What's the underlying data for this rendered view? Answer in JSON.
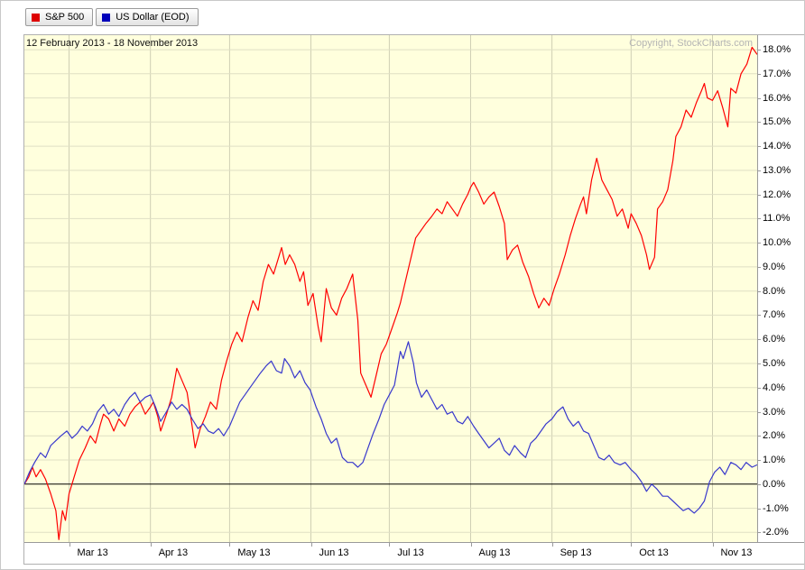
{
  "legend": {
    "items": [
      {
        "label": "S&P 500",
        "color": "#dd0000"
      },
      {
        "label": "US Dollar (EOD)",
        "color": "#0000bb"
      }
    ]
  },
  "chart_data": {
    "type": "line",
    "date_range": "12 February 2013 - 18 November 2013",
    "copyright": "Copyright, StockCharts.com",
    "y_axis": {
      "unit": "%",
      "tick_min": -2,
      "tick_max": 18,
      "tick_step": 1,
      "range": [
        -2.4,
        18.6
      ],
      "grid": true,
      "side": "right"
    },
    "x_axis": {
      "months": [
        {
          "label": "Mar 13",
          "pos": 0.061
        },
        {
          "label": "Apr 13",
          "pos": 0.172
        },
        {
          "label": "May 13",
          "pos": 0.28
        },
        {
          "label": "Jun 13",
          "pos": 0.391
        },
        {
          "label": "Jul 13",
          "pos": 0.498
        },
        {
          "label": "Aug 13",
          "pos": 0.609
        },
        {
          "label": "Sep 13",
          "pos": 0.72
        },
        {
          "label": "Oct 13",
          "pos": 0.828
        },
        {
          "label": "Nov 13",
          "pos": 0.939
        }
      ]
    },
    "colors": {
      "background": "#ffffdd",
      "h_grid": "#dfdfc4",
      "v_grid": "#cfcfb4",
      "zero_line": "#000000",
      "axis": "#9a9a9a"
    },
    "series": [
      {
        "id": "sp500",
        "name": "S&P 500",
        "color": "#ff0000",
        "unit": "% change",
        "points": [
          [
            0,
            0
          ],
          [
            0.006,
            0.3
          ],
          [
            0.011,
            0.7
          ],
          [
            0.016,
            0.3
          ],
          [
            0.022,
            0.6
          ],
          [
            0.029,
            0.2
          ],
          [
            0.036,
            -0.4
          ],
          [
            0.043,
            -1.1
          ],
          [
            0.047,
            -2.3
          ],
          [
            0.052,
            -1.1
          ],
          [
            0.056,
            -1.5
          ],
          [
            0.061,
            -0.4
          ],
          [
            0.068,
            0.3
          ],
          [
            0.075,
            1
          ],
          [
            0.083,
            1.5
          ],
          [
            0.09,
            2
          ],
          [
            0.097,
            1.7
          ],
          [
            0.104,
            2.5
          ],
          [
            0.108,
            2.9
          ],
          [
            0.115,
            2.7
          ],
          [
            0.122,
            2.2
          ],
          [
            0.129,
            2.7
          ],
          [
            0.137,
            2.4
          ],
          [
            0.144,
            2.9
          ],
          [
            0.151,
            3.2
          ],
          [
            0.158,
            3.4
          ],
          [
            0.165,
            2.9
          ],
          [
            0.172,
            3.2
          ],
          [
            0.176,
            3.4
          ],
          [
            0.182,
            2.8
          ],
          [
            0.186,
            2.2
          ],
          [
            0.194,
            2.9
          ],
          [
            0.201,
            3.6
          ],
          [
            0.208,
            4.8
          ],
          [
            0.215,
            4.3
          ],
          [
            0.222,
            3.8
          ],
          [
            0.229,
            2.4
          ],
          [
            0.233,
            1.5
          ],
          [
            0.24,
            2.3
          ],
          [
            0.247,
            2.8
          ],
          [
            0.254,
            3.4
          ],
          [
            0.262,
            3.1
          ],
          [
            0.269,
            4.3
          ],
          [
            0.276,
            5.1
          ],
          [
            0.283,
            5.8
          ],
          [
            0.29,
            6.3
          ],
          [
            0.297,
            5.9
          ],
          [
            0.305,
            6.9
          ],
          [
            0.312,
            7.6
          ],
          [
            0.319,
            7.2
          ],
          [
            0.326,
            8.4
          ],
          [
            0.333,
            9.1
          ],
          [
            0.34,
            8.7
          ],
          [
            0.347,
            9.4
          ],
          [
            0.351,
            9.8
          ],
          [
            0.356,
            9.1
          ],
          [
            0.362,
            9.5
          ],
          [
            0.369,
            9.1
          ],
          [
            0.376,
            8.4
          ],
          [
            0.381,
            8.8
          ],
          [
            0.387,
            7.4
          ],
          [
            0.394,
            7.9
          ],
          [
            0.401,
            6.5
          ],
          [
            0.405,
            5.9
          ],
          [
            0.412,
            8.1
          ],
          [
            0.419,
            7.3
          ],
          [
            0.426,
            7
          ],
          [
            0.433,
            7.7
          ],
          [
            0.44,
            8.1
          ],
          [
            0.448,
            8.7
          ],
          [
            0.455,
            6.8
          ],
          [
            0.459,
            4.6
          ],
          [
            0.466,
            4.1
          ],
          [
            0.473,
            3.6
          ],
          [
            0.48,
            4.5
          ],
          [
            0.487,
            5.4
          ],
          [
            0.494,
            5.8
          ],
          [
            0.501,
            6.4
          ],
          [
            0.509,
            7.1
          ],
          [
            0.513,
            7.5
          ],
          [
            0.52,
            8.4
          ],
          [
            0.527,
            9.3
          ],
          [
            0.534,
            10.2
          ],
          [
            0.541,
            10.5
          ],
          [
            0.548,
            10.8
          ],
          [
            0.556,
            11.1
          ],
          [
            0.563,
            11.4
          ],
          [
            0.57,
            11.2
          ],
          [
            0.577,
            11.7
          ],
          [
            0.584,
            11.4
          ],
          [
            0.591,
            11.1
          ],
          [
            0.598,
            11.6
          ],
          [
            0.605,
            12
          ],
          [
            0.609,
            12.3
          ],
          [
            0.613,
            12.5
          ],
          [
            0.62,
            12.1
          ],
          [
            0.627,
            11.6
          ],
          [
            0.634,
            11.9
          ],
          [
            0.641,
            12.1
          ],
          [
            0.648,
            11.5
          ],
          [
            0.655,
            10.8
          ],
          [
            0.659,
            9.3
          ],
          [
            0.666,
            9.7
          ],
          [
            0.673,
            9.9
          ],
          [
            0.68,
            9.2
          ],
          [
            0.688,
            8.6
          ],
          [
            0.695,
            7.9
          ],
          [
            0.702,
            7.3
          ],
          [
            0.709,
            7.7
          ],
          [
            0.716,
            7.4
          ],
          [
            0.723,
            8.1
          ],
          [
            0.73,
            8.7
          ],
          [
            0.738,
            9.5
          ],
          [
            0.745,
            10.3
          ],
          [
            0.752,
            11
          ],
          [
            0.759,
            11.6
          ],
          [
            0.763,
            11.9
          ],
          [
            0.767,
            11.2
          ],
          [
            0.774,
            12.6
          ],
          [
            0.781,
            13.5
          ],
          [
            0.788,
            12.6
          ],
          [
            0.795,
            12.2
          ],
          [
            0.802,
            11.8
          ],
          [
            0.809,
            11.1
          ],
          [
            0.816,
            11.4
          ],
          [
            0.824,
            10.6
          ],
          [
            0.828,
            11.2
          ],
          [
            0.835,
            10.8
          ],
          [
            0.842,
            10.3
          ],
          [
            0.849,
            9.5
          ],
          [
            0.853,
            8.9
          ],
          [
            0.86,
            9.4
          ],
          [
            0.864,
            11.4
          ],
          [
            0.871,
            11.7
          ],
          [
            0.878,
            12.2
          ],
          [
            0.885,
            13.4
          ],
          [
            0.889,
            14.4
          ],
          [
            0.896,
            14.8
          ],
          [
            0.903,
            15.5
          ],
          [
            0.91,
            15.2
          ],
          [
            0.917,
            15.8
          ],
          [
            0.924,
            16.3
          ],
          [
            0.928,
            16.6
          ],
          [
            0.932,
            16
          ],
          [
            0.939,
            15.9
          ],
          [
            0.946,
            16.3
          ],
          [
            0.953,
            15.6
          ],
          [
            0.96,
            14.8
          ],
          [
            0.964,
            16.4
          ],
          [
            0.971,
            16.2
          ],
          [
            0.978,
            17
          ],
          [
            0.986,
            17.4
          ],
          [
            0.993,
            18.1
          ],
          [
            1,
            17.8
          ]
        ]
      },
      {
        "id": "usd",
        "name": "US Dollar (EOD)",
        "color": "#3838cc",
        "unit": "% change",
        "points": [
          [
            0,
            0
          ],
          [
            0.007,
            0.5
          ],
          [
            0.014,
            0.9
          ],
          [
            0.022,
            1.3
          ],
          [
            0.029,
            1.1
          ],
          [
            0.036,
            1.6
          ],
          [
            0.043,
            1.8
          ],
          [
            0.05,
            2
          ],
          [
            0.058,
            2.2
          ],
          [
            0.065,
            1.9
          ],
          [
            0.072,
            2.1
          ],
          [
            0.079,
            2.4
          ],
          [
            0.086,
            2.2
          ],
          [
            0.093,
            2.5
          ],
          [
            0.1,
            3
          ],
          [
            0.108,
            3.3
          ],
          [
            0.115,
            2.9
          ],
          [
            0.122,
            3.1
          ],
          [
            0.129,
            2.8
          ],
          [
            0.137,
            3.3
          ],
          [
            0.144,
            3.6
          ],
          [
            0.151,
            3.8
          ],
          [
            0.158,
            3.4
          ],
          [
            0.165,
            3.6
          ],
          [
            0.172,
            3.7
          ],
          [
            0.179,
            3.2
          ],
          [
            0.186,
            2.6
          ],
          [
            0.194,
            3
          ],
          [
            0.201,
            3.4
          ],
          [
            0.208,
            3.1
          ],
          [
            0.215,
            3.3
          ],
          [
            0.222,
            3.1
          ],
          [
            0.229,
            2.7
          ],
          [
            0.237,
            2.3
          ],
          [
            0.244,
            2.5
          ],
          [
            0.251,
            2.2
          ],
          [
            0.258,
            2.1
          ],
          [
            0.265,
            2.3
          ],
          [
            0.272,
            2
          ],
          [
            0.28,
            2.4
          ],
          [
            0.287,
            2.9
          ],
          [
            0.294,
            3.4
          ],
          [
            0.301,
            3.7
          ],
          [
            0.308,
            4
          ],
          [
            0.315,
            4.3
          ],
          [
            0.322,
            4.6
          ],
          [
            0.33,
            4.9
          ],
          [
            0.337,
            5.1
          ],
          [
            0.344,
            4.7
          ],
          [
            0.351,
            4.6
          ],
          [
            0.355,
            5.2
          ],
          [
            0.362,
            4.9
          ],
          [
            0.369,
            4.4
          ],
          [
            0.376,
            4.7
          ],
          [
            0.383,
            4.2
          ],
          [
            0.39,
            3.9
          ],
          [
            0.398,
            3.2
          ],
          [
            0.405,
            2.7
          ],
          [
            0.412,
            2.1
          ],
          [
            0.419,
            1.7
          ],
          [
            0.426,
            1.9
          ],
          [
            0.434,
            1.1
          ],
          [
            0.441,
            0.9
          ],
          [
            0.448,
            0.9
          ],
          [
            0.455,
            0.7
          ],
          [
            0.462,
            0.9
          ],
          [
            0.469,
            1.5
          ],
          [
            0.476,
            2.1
          ],
          [
            0.484,
            2.7
          ],
          [
            0.491,
            3.3
          ],
          [
            0.498,
            3.7
          ],
          [
            0.505,
            4.1
          ],
          [
            0.513,
            5.5
          ],
          [
            0.517,
            5.2
          ],
          [
            0.524,
            5.9
          ],
          [
            0.531,
            5
          ],
          [
            0.535,
            4.2
          ],
          [
            0.542,
            3.6
          ],
          [
            0.549,
            3.9
          ],
          [
            0.556,
            3.5
          ],
          [
            0.563,
            3.1
          ],
          [
            0.57,
            3.3
          ],
          [
            0.577,
            2.9
          ],
          [
            0.584,
            3
          ],
          [
            0.591,
            2.6
          ],
          [
            0.598,
            2.5
          ],
          [
            0.605,
            2.8
          ],
          [
            0.613,
            2.4
          ],
          [
            0.62,
            2.1
          ],
          [
            0.627,
            1.8
          ],
          [
            0.634,
            1.5
          ],
          [
            0.641,
            1.7
          ],
          [
            0.648,
            1.9
          ],
          [
            0.655,
            1.4
          ],
          [
            0.662,
            1.2
          ],
          [
            0.669,
            1.6
          ],
          [
            0.677,
            1.3
          ],
          [
            0.684,
            1.1
          ],
          [
            0.691,
            1.7
          ],
          [
            0.698,
            1.9
          ],
          [
            0.705,
            2.2
          ],
          [
            0.712,
            2.5
          ],
          [
            0.72,
            2.7
          ],
          [
            0.727,
            3
          ],
          [
            0.735,
            3.2
          ],
          [
            0.742,
            2.7
          ],
          [
            0.749,
            2.4
          ],
          [
            0.756,
            2.6
          ],
          [
            0.763,
            2.2
          ],
          [
            0.77,
            2.1
          ],
          [
            0.777,
            1.6
          ],
          [
            0.784,
            1.1
          ],
          [
            0.791,
            1
          ],
          [
            0.798,
            1.2
          ],
          [
            0.805,
            0.9
          ],
          [
            0.813,
            0.8
          ],
          [
            0.82,
            0.9
          ],
          [
            0.828,
            0.6
          ],
          [
            0.835,
            0.4
          ],
          [
            0.842,
            0.1
          ],
          [
            0.849,
            -0.3
          ],
          [
            0.856,
            0
          ],
          [
            0.863,
            -0.2
          ],
          [
            0.871,
            -0.5
          ],
          [
            0.878,
            -0.5
          ],
          [
            0.885,
            -0.7
          ],
          [
            0.892,
            -0.9
          ],
          [
            0.899,
            -1.1
          ],
          [
            0.906,
            -1
          ],
          [
            0.914,
            -1.2
          ],
          [
            0.921,
            -1
          ],
          [
            0.928,
            -0.7
          ],
          [
            0.935,
            0.1
          ],
          [
            0.942,
            0.5
          ],
          [
            0.949,
            0.7
          ],
          [
            0.956,
            0.4
          ],
          [
            0.964,
            0.9
          ],
          [
            0.971,
            0.8
          ],
          [
            0.978,
            0.6
          ],
          [
            0.985,
            0.9
          ],
          [
            0.993,
            0.7
          ],
          [
            1,
            0.8
          ]
        ]
      }
    ]
  }
}
